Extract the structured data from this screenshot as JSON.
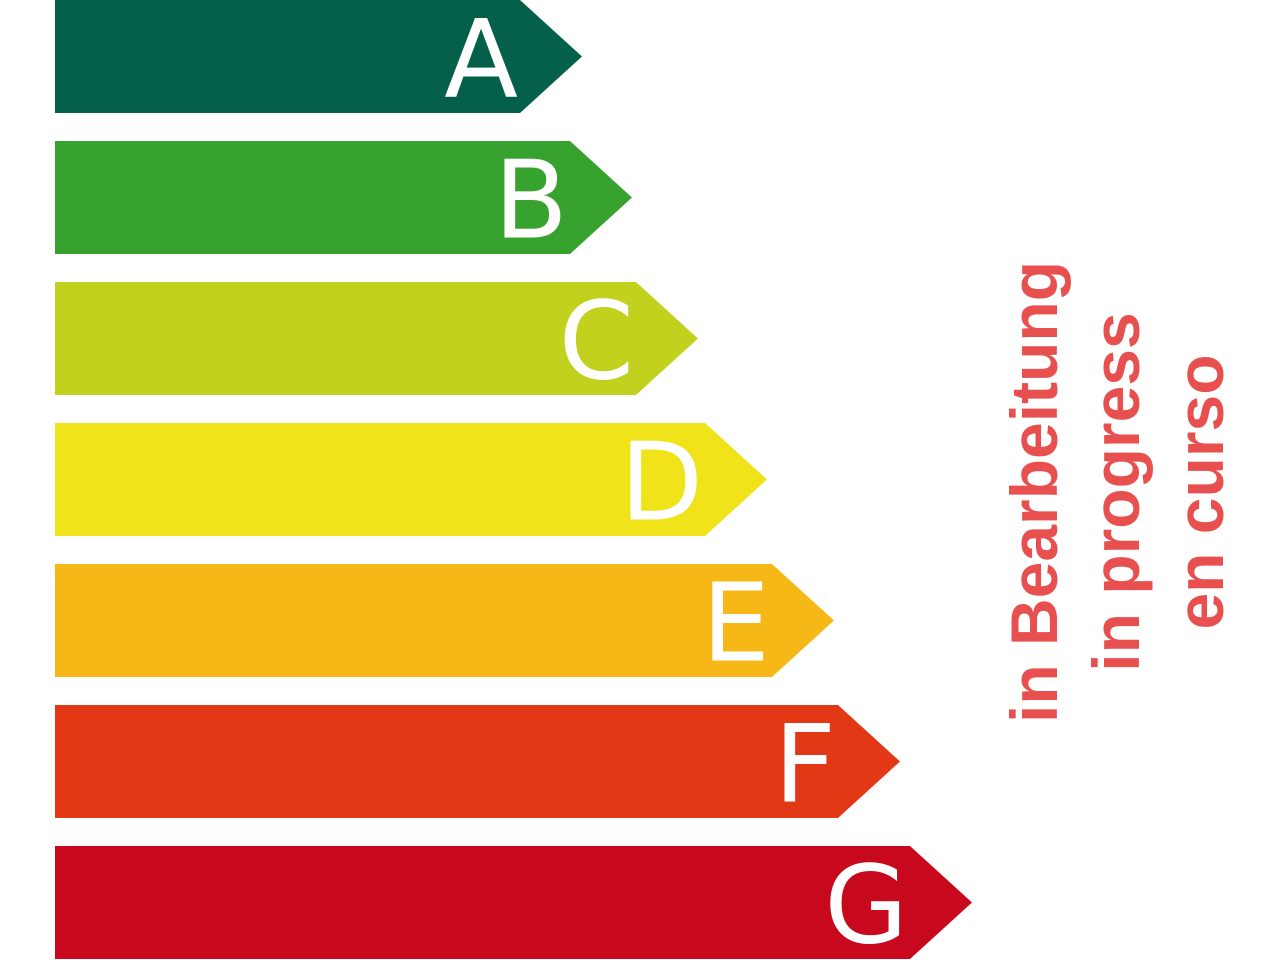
{
  "energy_classes": [
    {
      "label": "A",
      "color": "#05604A"
    },
    {
      "label": "B",
      "color": "#38A22F"
    },
    {
      "label": "C",
      "color": "#C2D01E"
    },
    {
      "label": "D",
      "color": "#F0E31A"
    },
    {
      "label": "E",
      "color": "#F5B816"
    },
    {
      "label": "F",
      "color": "#E33816"
    },
    {
      "label": "G",
      "color": "#C8081C"
    }
  ],
  "status": {
    "color": "#E8504F",
    "lines": [
      "in Bearbeitung",
      "in progress",
      "en curso"
    ]
  }
}
